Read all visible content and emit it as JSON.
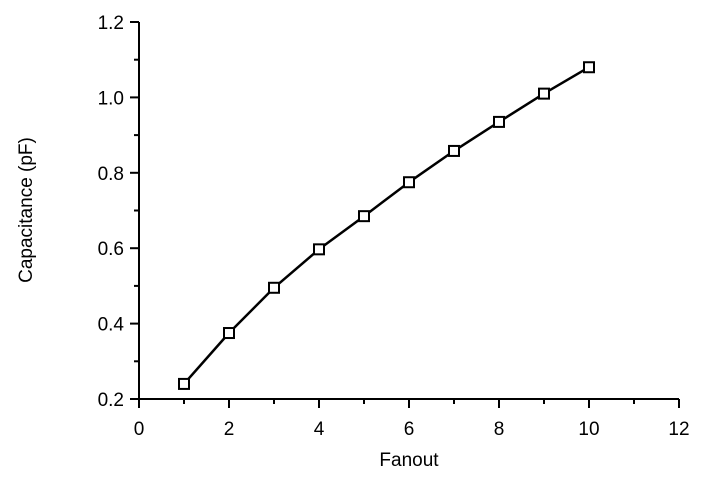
{
  "chart_data": {
    "type": "line",
    "xlabel": "Fanout",
    "ylabel": "Capacitance (pF)",
    "xlim": [
      0,
      12
    ],
    "ylim": [
      0.2,
      1.2
    ],
    "x_ticks": [
      "0",
      "2",
      "4",
      "6",
      "8",
      "10",
      "12"
    ],
    "y_ticks": [
      "0.2",
      "0.4",
      "0.6",
      "0.8",
      "1.0",
      "1.2"
    ],
    "grid": false,
    "legend": "none",
    "marker": "square",
    "series": [
      {
        "x": [
          1,
          2,
          3,
          4,
          5,
          6,
          7,
          8,
          9,
          10
        ],
        "y": [
          0.24,
          0.375,
          0.495,
          0.597,
          0.685,
          0.775,
          0.858,
          0.935,
          1.01,
          1.08
        ]
      }
    ]
  }
}
